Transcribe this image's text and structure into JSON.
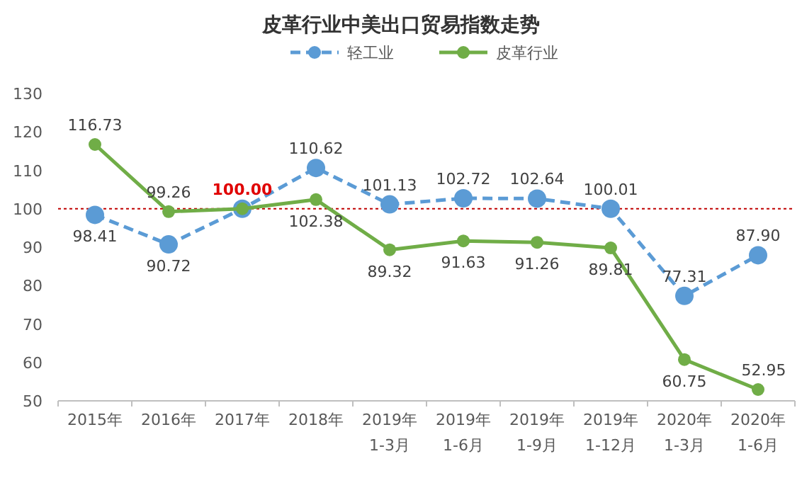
{
  "chart_data": {
    "type": "line",
    "title": "皮革行业中美出口贸易指数走势",
    "categories": [
      "2015年",
      "2016年",
      "2017年",
      "2018年",
      "2019年\n1-3月",
      "2019年\n1-6月",
      "2019年\n1-9月",
      "2019年\n1-12月",
      "2020年\n1-3月",
      "2020年\n1-6月"
    ],
    "series": [
      {
        "name": "轻工业",
        "color": "#5b9bd5",
        "line_style": "dashed",
        "values": [
          98.41,
          90.72,
          100.0,
          110.62,
          101.13,
          102.72,
          102.64,
          100.01,
          77.31,
          87.9
        ],
        "value_labels": [
          "98.41",
          "90.72",
          null,
          "110.62",
          "101.13",
          "102.72",
          "102.64",
          "100.01",
          "77.31",
          "87.90"
        ]
      },
      {
        "name": "皮革行业",
        "color": "#70ad47",
        "line_style": "solid",
        "values": [
          116.73,
          99.26,
          100.0,
          102.38,
          89.32,
          91.63,
          91.26,
          89.81,
          60.75,
          52.95
        ],
        "value_labels": [
          "116.73",
          "99.26",
          null,
          "102.38",
          "89.32",
          "91.63",
          "91.26",
          "89.81",
          "60.75",
          "52.95"
        ]
      }
    ],
    "annotations": [
      {
        "text": "100.00",
        "x": "2017年",
        "y": 100
      }
    ],
    "ref_lines": [
      {
        "axis": "y",
        "value": 100,
        "color": "#c00000",
        "line_style": "dotted"
      }
    ],
    "ylim": [
      50,
      130
    ],
    "yticks": [
      50,
      60,
      70,
      80,
      90,
      100,
      110,
      120,
      130
    ],
    "grid": false,
    "legend": "top",
    "marker": "circle"
  }
}
